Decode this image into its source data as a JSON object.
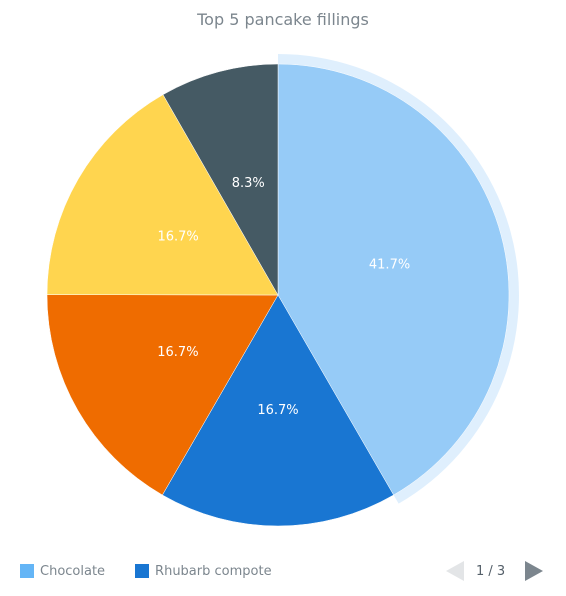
{
  "chart_data": {
    "type": "pie",
    "title": "Top 5 pancake fillings",
    "slices": [
      {
        "label": "Chocolate",
        "value": 41.7,
        "display": "41.7%",
        "color": "#96cbf7",
        "label_color": "#ffffff",
        "exploded": true
      },
      {
        "label": "Rhubarb compote",
        "value": 16.7,
        "display": "16.7%",
        "color": "#1976d2",
        "label_color": "#ffffff",
        "exploded": false
      },
      {
        "label": "",
        "value": 16.7,
        "display": "16.7%",
        "color": "#ef6c00",
        "label_color": "#ffffff",
        "exploded": false
      },
      {
        "label": "",
        "value": 16.7,
        "display": "16.7%",
        "color": "#ffd54f",
        "label_color": "#ffffff",
        "exploded": false
      },
      {
        "label": "",
        "value": 8.3,
        "display": "8.3%",
        "color": "#455a64",
        "label_color": "#ffffff",
        "exploded": false
      }
    ],
    "legend_placement": "bottom-left"
  },
  "legend": {
    "items": [
      {
        "label": "Chocolate",
        "color": "#64b5f6"
      },
      {
        "label": "Rhubarb compote",
        "color": "#1976d2"
      }
    ],
    "pager": "1 / 3"
  }
}
